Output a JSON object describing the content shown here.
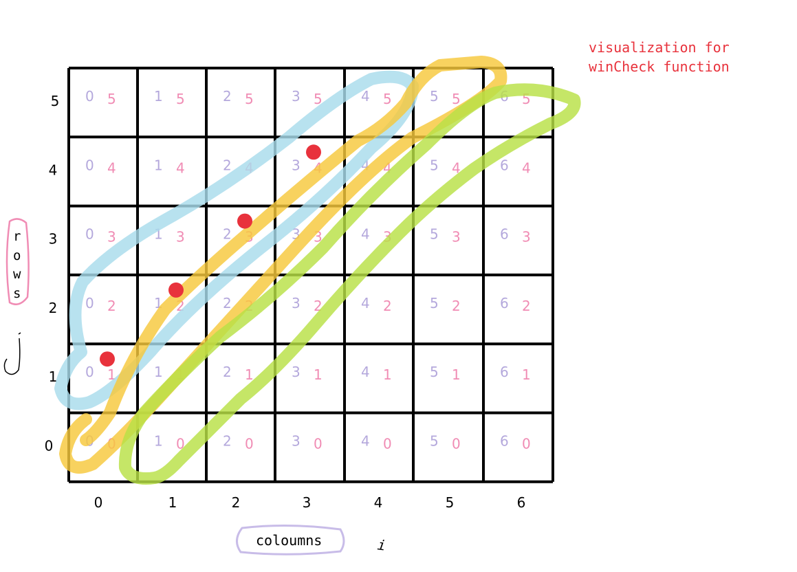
{
  "annotation": {
    "line1": "visualization for",
    "line2": "winCheck function"
  },
  "grid": {
    "columns": [
      0,
      1,
      2,
      3,
      4,
      5,
      6
    ],
    "rows": [
      0,
      1,
      2,
      3,
      4,
      5
    ]
  },
  "axis": {
    "x_title": "coloumns",
    "x_var": "i",
    "y_title_letters": [
      "r",
      "o",
      "w",
      "s"
    ],
    "y_var": "j"
  },
  "highlighted_cells": [
    {
      "col": 0,
      "row": 1
    },
    {
      "col": 1,
      "row": 2
    },
    {
      "col": 2,
      "row": 3
    },
    {
      "col": 3,
      "row": 4
    }
  ],
  "diagonal_strokes": [
    {
      "name": "blue",
      "color": "#a8dcec"
    },
    {
      "name": "yellow",
      "color": "#f6c83c"
    },
    {
      "name": "green",
      "color": "#b8e046"
    }
  ],
  "colors": {
    "grid_line": "#000000",
    "column_index": "#b4a8dc",
    "row_index": "#f08cb4",
    "marker": "#e8323c",
    "annotation": "#e8323c",
    "rows_outline": "#f08cb4",
    "columns_outline": "#c8bce8"
  }
}
